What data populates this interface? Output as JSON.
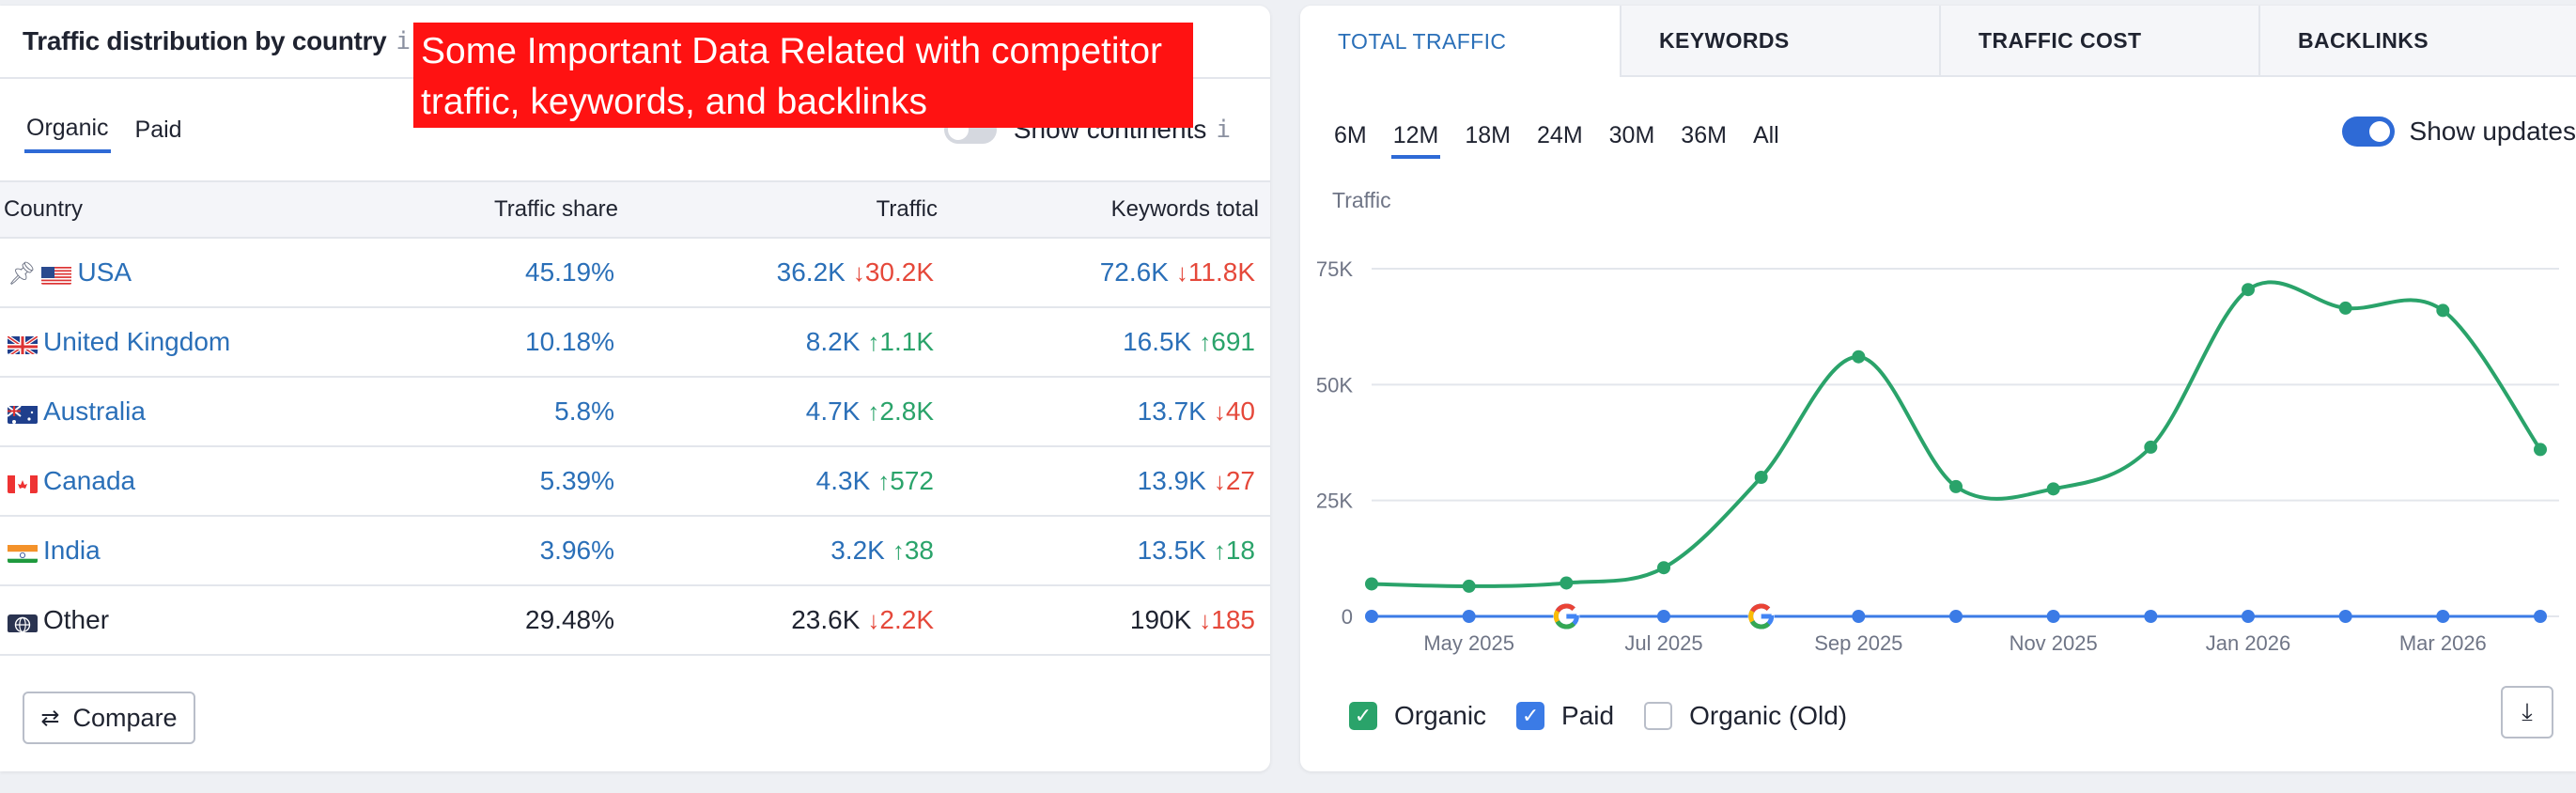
{
  "left": {
    "title": "Traffic distribution by country",
    "info_glyph": "i",
    "annotation": "Some Important Data Related with competitor traffic, keywords, and backlinks",
    "subtabs": [
      {
        "label": "Organic",
        "active": true
      },
      {
        "label": "Paid",
        "active": false
      }
    ],
    "continents_label": "Show continents",
    "columns": [
      "Country",
      "Traffic share",
      "Traffic",
      "Keywords total"
    ],
    "rows": [
      {
        "country": "USA",
        "flag": "us",
        "pinned": true,
        "share": "45.19%",
        "traffic": "36.2K",
        "traffic_delta": "30.2K",
        "traffic_dir": "down",
        "keywords": "72.6K",
        "keywords_delta": "11.8K",
        "keywords_dir": "down"
      },
      {
        "country": "United Kingdom",
        "flag": "uk",
        "pinned": false,
        "share": "10.18%",
        "traffic": "8.2K",
        "traffic_delta": "1.1K",
        "traffic_dir": "up",
        "keywords": "16.5K",
        "keywords_delta": "691",
        "keywords_dir": "up"
      },
      {
        "country": "Australia",
        "flag": "au",
        "pinned": false,
        "share": "5.8%",
        "traffic": "4.7K",
        "traffic_delta": "2.8K",
        "traffic_dir": "up",
        "keywords": "13.7K",
        "keywords_delta": "40",
        "keywords_dir": "down"
      },
      {
        "country": "Canada",
        "flag": "ca",
        "pinned": false,
        "share": "5.39%",
        "traffic": "4.3K",
        "traffic_delta": "572",
        "traffic_dir": "up",
        "keywords": "13.9K",
        "keywords_delta": "27",
        "keywords_dir": "down"
      },
      {
        "country": "India",
        "flag": "in",
        "pinned": false,
        "share": "3.96%",
        "traffic": "3.2K",
        "traffic_delta": "38",
        "traffic_dir": "up",
        "keywords": "13.5K",
        "keywords_delta": "18",
        "keywords_dir": "up"
      },
      {
        "country": "Other",
        "flag": "globe",
        "pinned": false,
        "share": "29.48%",
        "traffic": "23.6K",
        "traffic_delta": "2.2K",
        "traffic_dir": "down",
        "keywords": "190K",
        "keywords_delta": "185",
        "keywords_dir": "down"
      }
    ],
    "compare_label": "Compare"
  },
  "right": {
    "tabs": [
      {
        "label": "TOTAL TRAFFIC",
        "active": true
      },
      {
        "label": "KEYWORDS",
        "active": false
      },
      {
        "label": "TRAFFIC COST",
        "active": false
      },
      {
        "label": "BACKLINKS",
        "active": false
      }
    ],
    "periods": [
      {
        "label": "6M",
        "active": false
      },
      {
        "label": "12M",
        "active": true
      },
      {
        "label": "18M",
        "active": false
      },
      {
        "label": "24M",
        "active": false
      },
      {
        "label": "30M",
        "active": false
      },
      {
        "label": "36M",
        "active": false
      },
      {
        "label": "All",
        "active": false
      }
    ],
    "show_updates_label": "Show updates",
    "show_updates_on": true,
    "legend": [
      {
        "label": "Organic",
        "checked": true,
        "color": "#2aa36a"
      },
      {
        "label": "Paid",
        "checked": true,
        "color": "#3b7be6"
      },
      {
        "label": "Organic (Old)",
        "checked": false,
        "color": "#b9bec9"
      }
    ]
  },
  "chart_data": {
    "type": "line",
    "ylabel": "Traffic",
    "ylim": [
      0,
      75000
    ],
    "y_ticks": [
      0,
      25000,
      50000,
      75000
    ],
    "y_tick_labels": [
      "0",
      "25K",
      "50K",
      "75K"
    ],
    "x_tick_labels": [
      "May 2025",
      "Jul 2025",
      "Sep 2025",
      "Nov 2025",
      "Jan 2026",
      "Mar 2026"
    ],
    "x_tick_index": [
      1,
      3,
      5,
      7,
      9,
      11
    ],
    "point_count": 13,
    "grid": true,
    "update_markers_index": [
      2,
      4
    ],
    "update_marker_icon": "google-icon",
    "series": [
      {
        "name": "Organic",
        "color": "#2aa36a",
        "values": [
          7000,
          6500,
          7200,
          10500,
          30000,
          56000,
          28000,
          27500,
          36500,
          70500,
          66500,
          66000,
          36000
        ]
      },
      {
        "name": "Paid",
        "color": "#3b7be6",
        "values": [
          0,
          0,
          0,
          0,
          0,
          0,
          0,
          0,
          0,
          0,
          0,
          0,
          0
        ]
      }
    ]
  }
}
